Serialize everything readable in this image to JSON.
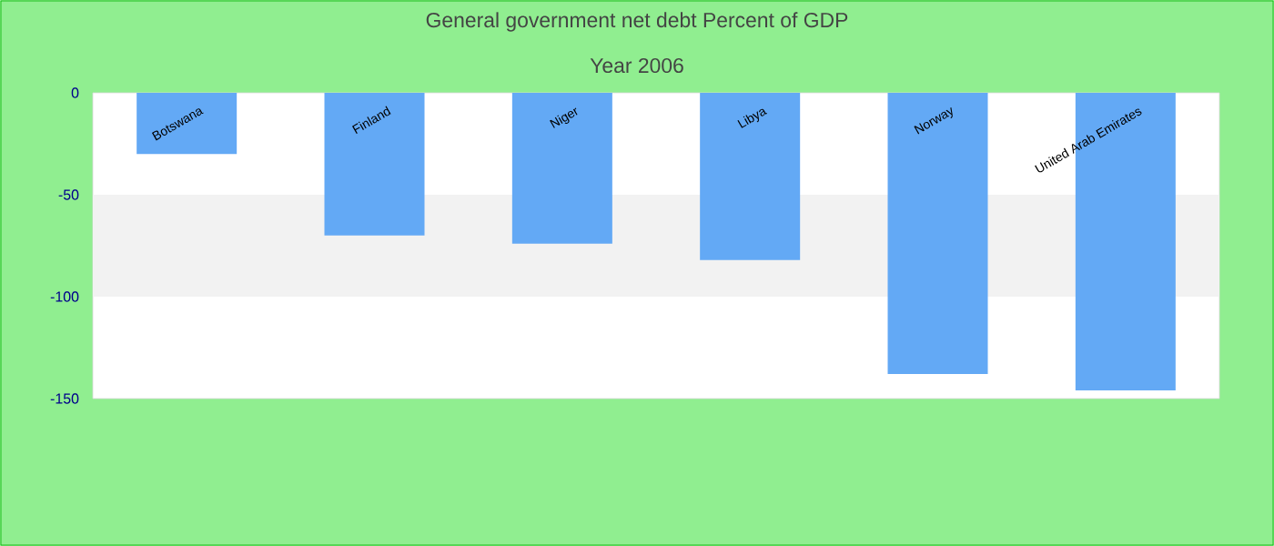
{
  "chart_data": {
    "type": "bar",
    "title": "General government net debt  Percent of GDP",
    "subtitle": "Year 2006",
    "categories": [
      "Botswana",
      "Finland",
      "Niger",
      "Libya",
      "Norway",
      "United Arab Emirates"
    ],
    "values": [
      -30,
      -70,
      -74,
      -82,
      -138,
      -146
    ],
    "color": "#63a9f5",
    "ylim": [
      -150,
      0
    ],
    "yticks": [
      -150,
      -100,
      -50,
      0
    ],
    "bands": [
      {
        "axis": "y",
        "from": -100,
        "to": -50,
        "color": "#f2f2f2"
      }
    ]
  }
}
